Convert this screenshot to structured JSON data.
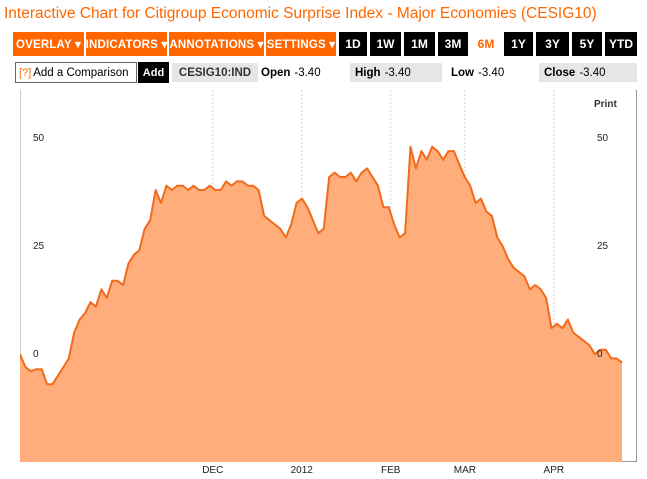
{
  "title": "Interactive Chart for Citigroup Economic Surprise Index - Major Economies (CESIG10)",
  "toolbar": {
    "menus": [
      {
        "label": "OVERLAY ▾"
      },
      {
        "label": "INDICATORS ▾"
      },
      {
        "label": "ANNOTATIONS ▾"
      },
      {
        "label": "SETTINGS ▾"
      }
    ],
    "ranges": [
      {
        "label": "1D"
      },
      {
        "label": "1W"
      },
      {
        "label": "1M"
      },
      {
        "label": "3M"
      },
      {
        "label": "6M",
        "active": true
      },
      {
        "label": "1Y"
      },
      {
        "label": "3Y"
      },
      {
        "label": "5Y"
      },
      {
        "label": "YTD"
      }
    ]
  },
  "compare": {
    "icon": "[?]",
    "label": "Add a Comparison",
    "add_label": "Add"
  },
  "ticker": "CESIG10:IND",
  "stats": {
    "open_label": "Open",
    "open_value": "-3.40",
    "high_label": "High",
    "high_value": "-3.40",
    "low_label": "Low",
    "low_value": "-3.40",
    "close_label": "Close",
    "close_value": "-3.40"
  },
  "print_label": "Print",
  "colors": {
    "accent": "#ff6600",
    "area_fill": "#ffad7a",
    "line": "#f26a1b"
  },
  "chart_data": {
    "type": "area",
    "y_ticks": [
      "50",
      "25",
      "0"
    ],
    "y_tick_values": [
      50,
      25,
      0
    ],
    "ylim": [
      -25,
      60
    ],
    "x_labels": [
      "DEC",
      "2012",
      "FEB",
      "MAR",
      "APR"
    ],
    "x_label_positions": [
      13,
      19,
      25,
      30,
      36
    ],
    "x_range": [
      0,
      40.8
    ],
    "grid": "vertical dotted lines at month labels",
    "values": [
      0,
      -3,
      -4,
      -3.5,
      -3.5,
      -7,
      -7,
      -5,
      -3,
      -1,
      5,
      8,
      9.5,
      12,
      11,
      15,
      13,
      17,
      17,
      16,
      21,
      23,
      24,
      29,
      31,
      38,
      35,
      39,
      38,
      39,
      39,
      38,
      39,
      38,
      38,
      39,
      38,
      38,
      40,
      39,
      40,
      40,
      39,
      39,
      38,
      32,
      31,
      30,
      29,
      27,
      30,
      35,
      36,
      34,
      31,
      28,
      29,
      41,
      42,
      41,
      41,
      42,
      40,
      42,
      43,
      41,
      39,
      34,
      34,
      30,
      27,
      28,
      48,
      43,
      47,
      45,
      48,
      47,
      45,
      47,
      47,
      44,
      41,
      39,
      35,
      36,
      33,
      32,
      27,
      25,
      22,
      20,
      19,
      18,
      15,
      16,
      15,
      13,
      6,
      7,
      6,
      8,
      5,
      4,
      3,
      2,
      0,
      1,
      1,
      -1,
      -1,
      -2
    ]
  }
}
